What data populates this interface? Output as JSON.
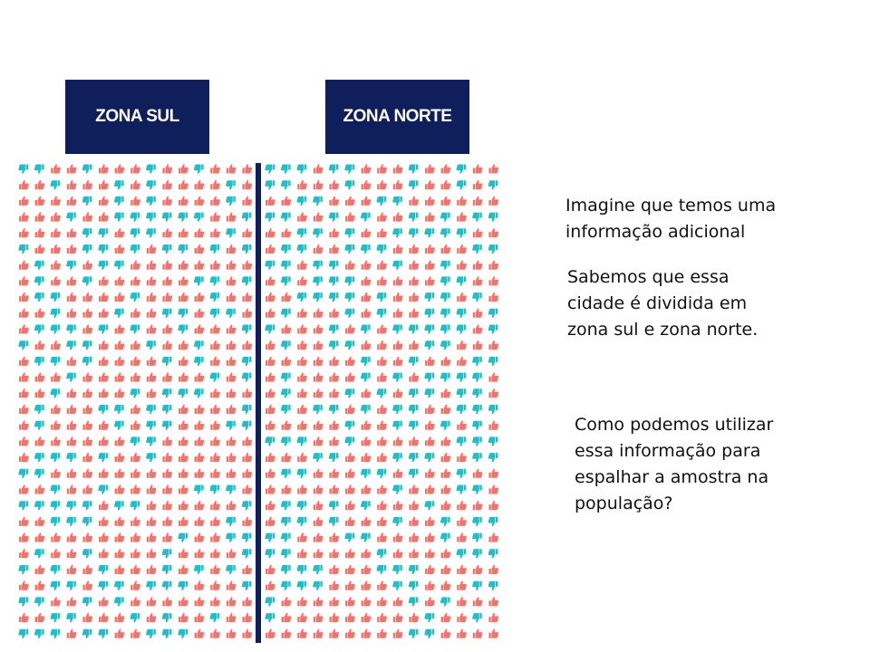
{
  "zones": {
    "south_label": "ZONA SUL",
    "north_label": "ZONA NORTE"
  },
  "icons": {
    "like": "thumbs-up-icon",
    "dislike": "thumbs-down-icon",
    "like_color": "#f4726a",
    "dislike_color": "#1fbfc7",
    "divider_color": "#0f1f5b"
  },
  "text": {
    "block1": [
      "Imagine que temos uma",
      "informação adicional"
    ],
    "block2": [
      "Sabemos que essa",
      "cidade é dividida em",
      "zona sul e zona norte."
    ],
    "block3": [
      "Como podemos utilizar",
      "essa informação para",
      "espalhar a amostra na",
      "população?"
    ]
  }
}
